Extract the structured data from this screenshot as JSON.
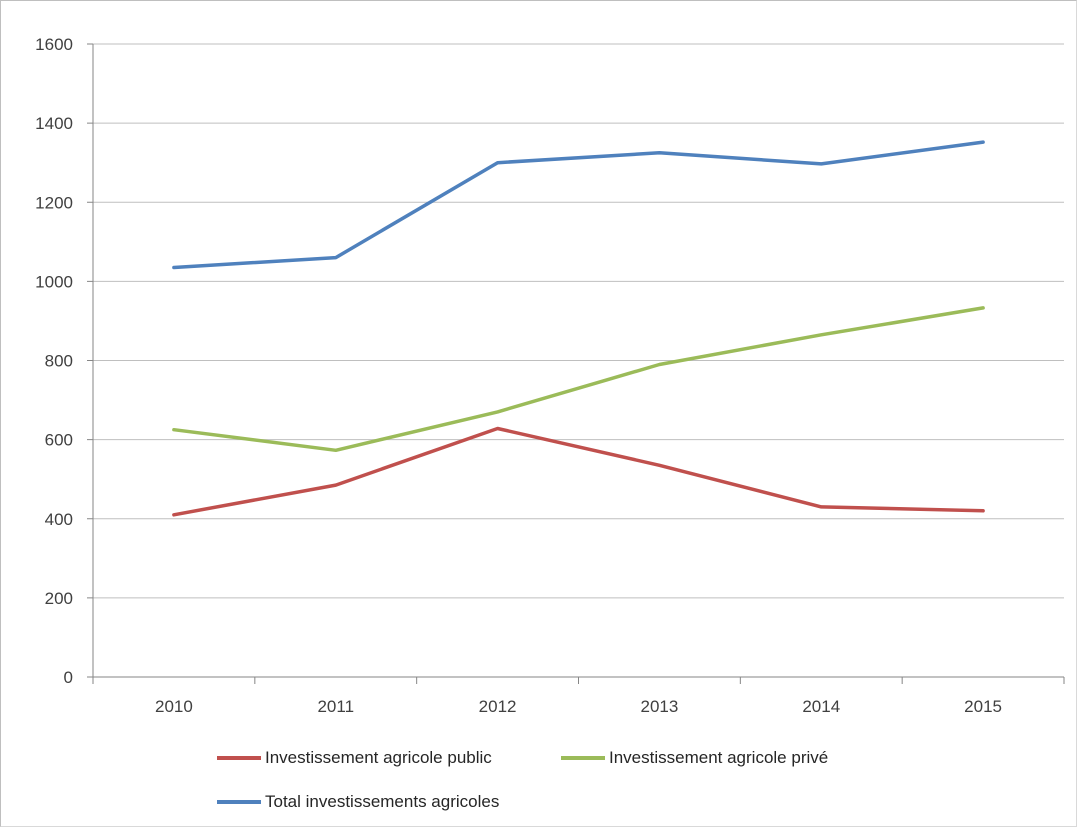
{
  "chart_data": {
    "type": "line",
    "title": "",
    "xlabel": "",
    "ylabel": "",
    "categories": [
      "2010",
      "2011",
      "2012",
      "2013",
      "2014",
      "2015"
    ],
    "ylim": [
      0,
      1600
    ],
    "yticks": [
      0,
      200,
      400,
      600,
      800,
      1000,
      1200,
      1400,
      1600
    ],
    "grid": true,
    "legend_position": "bottom",
    "series": [
      {
        "name": "Investissement agricole public",
        "color": "#c0504d",
        "values": [
          410,
          485,
          628,
          535,
          430,
          420
        ]
      },
      {
        "name": "Investissement agricole privé",
        "color": "#9bbb59",
        "values": [
          625,
          573,
          670,
          790,
          865,
          933
        ]
      },
      {
        "name": "Total investissements agricoles",
        "color": "#4f81bd",
        "values": [
          1035,
          1060,
          1300,
          1325,
          1297,
          1352
        ]
      }
    ]
  }
}
